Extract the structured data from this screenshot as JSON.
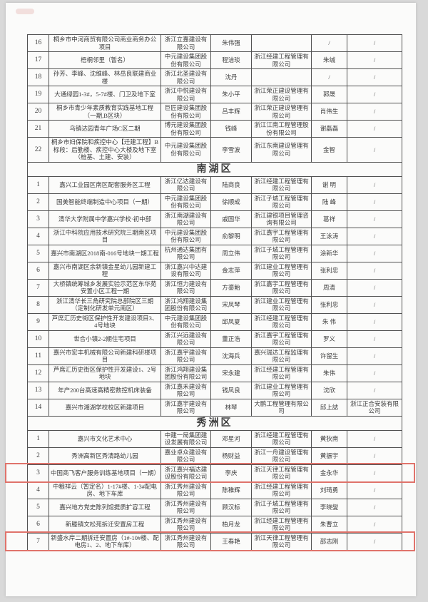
{
  "page": {
    "background_color": "#fbfbfa",
    "highlight_color": "#e0736b",
    "text_color": "#3d3d3d"
  },
  "table": {
    "sections": [
      {
        "title": "",
        "rows": [
          {
            "no": "16",
            "project": "桐乡市中河商贸有限公司商业商务办公项目",
            "contractor": "浙江立嘉建设有限公司",
            "contractor_person": "朱伟强",
            "supervisor": "",
            "supervisor_person": "/",
            "other": "/",
            "highlighted": false
          },
          {
            "no": "17",
            "project": "梧桐邻里（暂名）",
            "contractor": "中元建设集团股份有限公司",
            "contractor_person": "程洁琰",
            "supervisor": "浙江经建工程管理有限公司",
            "supervisor_person": "朱缄",
            "other": "/",
            "highlighted": false
          },
          {
            "no": "18",
            "project": "孙芳、李峰、沈维峰、林岳良联建商业楼",
            "contractor": "浙江北圣建设有限公司",
            "contractor_person": "沈丹",
            "supervisor": "",
            "supervisor_person": "/",
            "other": "/",
            "highlighted": false
          },
          {
            "no": "19",
            "project": "大通绿园1-3#，5-7#楼、门卫及地下室",
            "contractor": "浙江中悦建设有限公司",
            "contractor_person": "朱小平",
            "supervisor": "浙江荣正建设管理有限公司",
            "supervisor_person": "郭晟",
            "other": "/",
            "highlighted": false
          },
          {
            "no": "20",
            "project": "桐乡市青少年素质教育实践基地工程（一期,B区块）",
            "contractor": "巨匠建设集团股份有限公司",
            "contractor_person": "吕丰辉",
            "supervisor": "浙江荣正建设管理有限公司",
            "supervisor_person": "肖伟生",
            "other": "/",
            "highlighted": false
          },
          {
            "no": "21",
            "project": "乌镇达园青年广场C区二期",
            "contractor": "博元建设集团股份有限公司",
            "contractor_person": "钱峰",
            "supervisor": "浙江江南工程管理股份有限公司",
            "supervisor_person": "谢磊磊",
            "other": "/",
            "highlighted": false
          },
          {
            "no": "22",
            "project": "桐乡市妇保院和疾控中心【迁建工程】B标段：后勤楼、疾控中心大楼及地下室（桩基、土建、安装）",
            "contractor": "中元建设集团股份有限公司",
            "contractor_person": "李雪波",
            "supervisor": "浙江东南建设管理有限公司",
            "supervisor_person": "金智",
            "other": "/",
            "highlighted": false
          }
        ]
      },
      {
        "title": "南湖区",
        "rows": [
          {
            "no": "1",
            "project": "嘉兴工业园区南区配套服务区工程",
            "contractor": "浙江亿达建设有限公司",
            "contractor_person": "陆商良",
            "supervisor": "浙江经建工程管理有限公司",
            "supervisor_person": "谢 明",
            "other": "/",
            "highlighted": false
          },
          {
            "no": "2",
            "project": "国美智能终端制造中心项目（一期）",
            "contractor": "中元建设集团股份有限公司",
            "contractor_person": "徐顺成",
            "supervisor": "浙江子城工程管理有限公司",
            "supervisor_person": "陆 峰",
            "other": "/",
            "highlighted": false
          },
          {
            "no": "3",
            "project": "清华大学附属中学嘉兴学校·初中部",
            "contractor": "浙江南湖建设有限公司",
            "contractor_person": "戚国华",
            "supervisor": "浙江建银项目管理咨询有限公司",
            "supervisor_person": "葛祥",
            "other": "/",
            "highlighted": false
          },
          {
            "no": "4",
            "project": "浙江中科院应用技术研究院三期南区项目",
            "contractor": "中元建设集团股份有限公司",
            "contractor_person": "俞黎明",
            "supervisor": "浙江嘉宇工程管理有限公司",
            "supervisor_person": "王泳涛",
            "other": "/",
            "highlighted": false
          },
          {
            "no": "5",
            "project": "嘉兴市南湖区2018南-016号地块一期工程",
            "contractor": "杭州通达集团有限公司",
            "contractor_person": "周立伟",
            "supervisor": "浙江子城工程管理有限公司",
            "supervisor_person": "涂新华",
            "other": "/",
            "highlighted": false
          },
          {
            "no": "6",
            "project": "嘉兴市南湖区余新镇金星幼儿园新建工程",
            "contractor": "浙江嘉兴中达建设有限公司",
            "contractor_person": "金志萍",
            "supervisor": "浙江建业工程管理有限公司",
            "supervisor_person": "张利忠",
            "other": "/",
            "highlighted": false
          },
          {
            "no": "7",
            "project": "大桥镇统筹城乡发展实验示范区东华苑安置小区工程一期",
            "contractor": "浙江恒力建设有限公司",
            "contractor_person": "方鎏鲐",
            "supervisor": "浙江嘉宇工程管理有限公司",
            "supervisor_person": "周清",
            "other": "/",
            "highlighted": false
          },
          {
            "no": "8",
            "project": "浙江清华长三角研究院总部院区三期（定制化研发单元南区）",
            "contractor": "浙江鸿翔建设集团股份有限公司",
            "contractor_person": "宋凤琴",
            "supervisor": "浙江建业工程管理有限公司",
            "supervisor_person": "张利忠",
            "other": "/",
            "highlighted": false
          },
          {
            "no": "9",
            "project": "芦席汇历史街区保护性开发建设项目3、4号地块",
            "contractor": "中元建设集团股份有限公司",
            "contractor_person": "邱凤夏",
            "supervisor": "浙江经建工程管理有限公司",
            "supervisor_person": "朱 伟",
            "other": "/",
            "highlighted": false
          },
          {
            "no": "10",
            "project": "世合小镇2-2期住宅项目",
            "contractor": "浙江兴远建设有限公司",
            "contractor_person": "董正浩",
            "supervisor": "浙江嘉宇工程管理有限公司",
            "supervisor_person": "罗义",
            "other": "/",
            "highlighted": false
          },
          {
            "no": "11",
            "project": "嘉兴市宏丰机械有限公司新建科研楼项目",
            "contractor": "浙江嘉宇建设有限公司",
            "contractor_person": "沈海兵",
            "supervisor": "嘉兴瑞达工程监理有限公司",
            "supervisor_person": "许留生",
            "other": "/",
            "highlighted": false
          },
          {
            "no": "12",
            "project": "芦席汇历史街区保护性开发建设1、2号地块",
            "contractor": "浙江鸿翔建设集团股份有限公司",
            "contractor_person": "宋永建",
            "supervisor": "浙江经建工程管理有限公司",
            "supervisor_person": "朱伟",
            "other": "/",
            "highlighted": false
          },
          {
            "no": "13",
            "project": "年产200台高速高精密数控机床装备",
            "contractor": "浙江嘉禾建设有限公司",
            "contractor_person": "钱凤良",
            "supervisor": "浙江建业工程管理有限公司",
            "supervisor_person": "沈欣",
            "other": "/",
            "highlighted": false
          },
          {
            "no": "14",
            "project": "嘉兴市湘湖学校校区新建项目",
            "contractor": "浙江嘉宇建设有限公司",
            "contractor_person": "林琴",
            "supervisor": "大鹏工程管理有限公司",
            "supervisor_person": "邱上誌",
            "other": "浙江正合安装有限公司",
            "highlighted": false
          }
        ]
      },
      {
        "title": "秀洲区",
        "rows": [
          {
            "no": "1",
            "project": "嘉兴市文化艺术中心",
            "contractor": "中建一局集团建设发展有限公司",
            "contractor_person": "邓星河",
            "supervisor": "浙江经建工程管理有限公司",
            "supervisor_person": "黄狄南",
            "other": "/",
            "highlighted": false
          },
          {
            "no": "2",
            "project": "秀洲高新区秀清路幼儿园",
            "contractor": "嘉业卓众建设有限公司",
            "contractor_person": "杨财益",
            "supervisor": "浙江一舟建设管理有限公司",
            "supervisor_person": "黄振宇",
            "other": "/",
            "highlighted": false
          },
          {
            "no": "3",
            "project": "中国商飞客户服务训练基地项目（一期）",
            "contractor": "浙江嘉兴福达建设股份有限公司",
            "contractor_person": "李庆",
            "supervisor": "浙江天律工程管理有限公司",
            "supervisor_person": "金永华",
            "other": "/",
            "highlighted": true
          },
          {
            "no": "4",
            "project": "中粮祥云（暂定名）1-17#楼、1-3#配电房、地下车库",
            "contractor": "浙江秀州建设有限公司",
            "contractor_person": "陈稚辉",
            "supervisor": "浙江经建工程管理有限公司",
            "supervisor_person": "刘琦勇",
            "other": "/",
            "highlighted": false
          },
          {
            "no": "5",
            "project": "嘉兴地方党史陈列馆提质扩容工程",
            "contractor": "浙江秀州建设有限公司",
            "contractor_person": "顾汉标",
            "supervisor": "浙江子城工程管理有限公司",
            "supervisor_person": "李晓燮",
            "other": "/",
            "highlighted": false
          },
          {
            "no": "6",
            "project": "新塍镇文松苑拆迁安置房工程",
            "contractor": "浙江秀州建设有限公司",
            "contractor_person": "柏月龙",
            "supervisor": "浙江经建工程管理有限公司",
            "supervisor_person": "朱曹立",
            "other": "/",
            "highlighted": false
          },
          {
            "no": "7",
            "project": "新盛水岸二期拆迁安置房（1#-10#楼、配电房1、2、地下车库）",
            "contractor": "浙江秀州建设有限公司",
            "contractor_person": "王春艳",
            "supervisor": "浙江天律工程管理有限公司",
            "supervisor_person": "邵志刚",
            "other": "/",
            "highlighted": true
          }
        ]
      }
    ]
  }
}
